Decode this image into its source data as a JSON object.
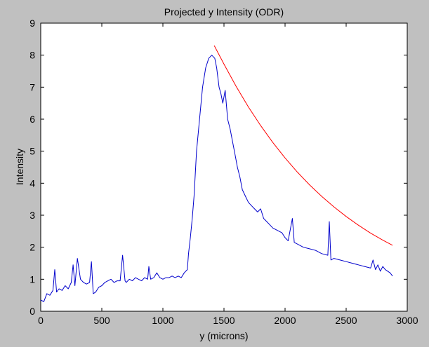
{
  "chart_data": {
    "type": "line",
    "title": "Projected y Intensity (ODR)",
    "xlabel": "y (microns)",
    "ylabel": "Intensity",
    "xlim": [
      0,
      3000
    ],
    "ylim": [
      0,
      9
    ],
    "xticks": [
      0,
      500,
      1000,
      1500,
      2000,
      2500,
      3000
    ],
    "yticks": [
      0,
      1,
      2,
      3,
      4,
      5,
      6,
      7,
      8,
      9
    ],
    "grid": false,
    "legend": "none",
    "series": [
      {
        "color": "#0000cc",
        "x": [
          0,
          25,
          50,
          75,
          100,
          115,
          130,
          150,
          175,
          200,
          225,
          250,
          265,
          280,
          300,
          325,
          350,
          375,
          400,
          415,
          430,
          450,
          475,
          500,
          525,
          550,
          575,
          600,
          625,
          650,
          670,
          690,
          700,
          725,
          750,
          775,
          800,
          825,
          850,
          875,
          885,
          900,
          925,
          950,
          975,
          1000,
          1025,
          1050,
          1075,
          1100,
          1125,
          1150,
          1175,
          1200,
          1210,
          1225,
          1240,
          1255,
          1275,
          1300,
          1325,
          1350,
          1375,
          1400,
          1425,
          1440,
          1460,
          1475,
          1490,
          1510,
          1530,
          1550,
          1570,
          1590,
          1610,
          1630,
          1650,
          1675,
          1700,
          1725,
          1750,
          1775,
          1800,
          1825,
          1850,
          1875,
          1900,
          1925,
          1950,
          1975,
          2000,
          2025,
          2060,
          2075,
          2100,
          2150,
          2200,
          2250,
          2300,
          2350,
          2362,
          2375,
          2400,
          2450,
          2500,
          2550,
          2600,
          2650,
          2700,
          2720,
          2740,
          2760,
          2780,
          2800,
          2820,
          2840,
          2860,
          2880
        ],
        "y": [
          0.35,
          0.3,
          0.55,
          0.5,
          0.65,
          1.3,
          0.6,
          0.7,
          0.65,
          0.8,
          0.7,
          0.9,
          1.45,
          0.8,
          1.65,
          1.0,
          0.9,
          0.85,
          0.9,
          1.55,
          0.55,
          0.6,
          0.75,
          0.8,
          0.9,
          0.95,
          1.0,
          0.9,
          0.95,
          0.95,
          1.75,
          0.95,
          0.9,
          1.0,
          0.95,
          1.05,
          1.0,
          0.95,
          1.05,
          1.0,
          1.4,
          1.0,
          1.05,
          1.2,
          1.05,
          1.0,
          1.05,
          1.05,
          1.1,
          1.05,
          1.1,
          1.05,
          1.2,
          1.3,
          1.8,
          2.3,
          2.9,
          3.6,
          5.0,
          6.0,
          7.0,
          7.6,
          7.9,
          8.0,
          7.9,
          7.6,
          7.0,
          6.8,
          6.5,
          6.9,
          6.0,
          5.7,
          5.3,
          4.9,
          4.5,
          4.2,
          3.8,
          3.6,
          3.4,
          3.3,
          3.2,
          3.1,
          3.2,
          2.9,
          2.8,
          2.7,
          2.6,
          2.55,
          2.5,
          2.45,
          2.3,
          2.2,
          2.9,
          2.15,
          2.1,
          2.0,
          1.95,
          1.9,
          1.8,
          1.75,
          2.8,
          1.6,
          1.65,
          1.6,
          1.55,
          1.5,
          1.45,
          1.4,
          1.35,
          1.6,
          1.3,
          1.45,
          1.25,
          1.4,
          1.3,
          1.25,
          1.2,
          1.1
        ]
      },
      {
        "color": "#ff0000",
        "x": [
          1420,
          1500,
          1600,
          1700,
          1800,
          1900,
          2000,
          2100,
          2200,
          2300,
          2400,
          2500,
          2600,
          2700,
          2800,
          2880
        ],
        "y": [
          8.3,
          7.72,
          7.02,
          6.38,
          5.8,
          5.27,
          4.79,
          4.35,
          3.95,
          3.59,
          3.26,
          2.96,
          2.69,
          2.44,
          2.22,
          2.06
        ]
      }
    ]
  }
}
